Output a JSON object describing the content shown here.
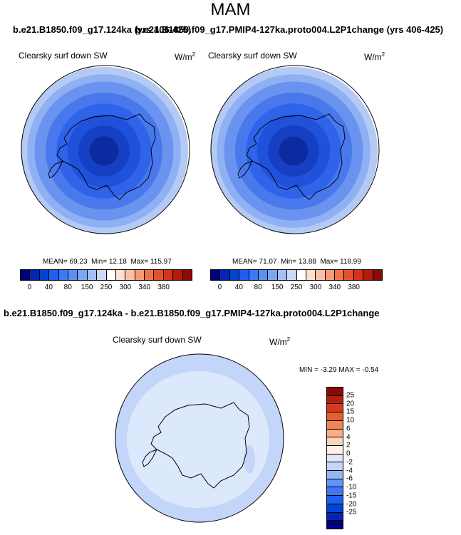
{
  "figure": {
    "season": "MAM",
    "top_left_title": "b.e21.B1850.f09_g17.124ka (yrs 406-425)",
    "top_right_title": "b.e21.B1850.f09_g17.PMIP4-127ka.proto004.L2P1change (yrs 406-425)",
    "diff_title": "b.e21.B1850.f09_g17.124ka - b.e21.B1850.f09_g17.PMIP4-127ka.proto004.L2P1change"
  },
  "colors": {
    "ramp11": [
      "#000080",
      "#0026b3",
      "#0044d0",
      "#1f5ff0",
      "#3b78f5",
      "#5a8ff5",
      "#7ba6f5",
      "#a3c0f5",
      "#c9daf8",
      "#ffffff",
      "#fde0cf",
      "#fbc0a3",
      "#f59a73",
      "#ee7448",
      "#e5502a",
      "#d5321b",
      "#b51a10",
      "#8b0a05"
    ],
    "diff_ramp": [
      "#000080",
      "#0026b3",
      "#0044d0",
      "#1f5ff0",
      "#3b78f5",
      "#6593f5",
      "#93b4f7",
      "#c3d5f8",
      "#dce8fb",
      "#fff0e6",
      "#fdd4bb",
      "#f8ad88",
      "#f08459",
      "#e65e35",
      "#d63a1e",
      "#b81e10",
      "#8b0a05"
    ],
    "land_outline": "#000000"
  },
  "chart_data": [
    {
      "type": "heatmap",
      "projection": "south-polar-stereographic",
      "title": "b.e21.B1850.f09_g17.124ka (yrs 406-425)",
      "variable": "Clearsky surf down SW",
      "units": "W/m",
      "units_exp": "2",
      "stats": {
        "mean_label": "MEAN=",
        "mean": "69.23",
        "min_label": "Min=",
        "min": "12.18",
        "max_label": "Max=",
        "max": "115.97"
      },
      "colorbar_ticks": [
        "0",
        "40",
        "80",
        "150",
        "250",
        "300",
        "340",
        "380"
      ],
      "rings": [
        {
          "level": 115,
          "color": "#b3caf5"
        },
        {
          "level": 105,
          "color": "#8fb0f2"
        },
        {
          "level": 95,
          "color": "#6a93ef"
        },
        {
          "level": 80,
          "color": "#4878ec"
        },
        {
          "level": 65,
          "color": "#2e63ea"
        },
        {
          "level": 50,
          "color": "#1f51db"
        },
        {
          "level": 35,
          "color": "#1640c4"
        },
        {
          "level": 20,
          "color": "#0e2aa0"
        }
      ]
    },
    {
      "type": "heatmap",
      "projection": "south-polar-stereographic",
      "title": "b.e21.B1850.f09_g17.PMIP4-127ka.proto004.L2P1change (yrs 406-425)",
      "variable": "Clearsky surf down SW",
      "units": "W/m",
      "units_exp": "2",
      "stats": {
        "mean_label": "MEAN=",
        "mean": "71.07",
        "min_label": "Min=",
        "min": "13.88",
        "max_label": "Max=",
        "max": "118.99"
      },
      "colorbar_ticks": [
        "0",
        "40",
        "80",
        "150",
        "250",
        "300",
        "340",
        "380"
      ],
      "rings": [
        {
          "level": 115,
          "color": "#b3caf5"
        },
        {
          "level": 105,
          "color": "#8fb0f2"
        },
        {
          "level": 95,
          "color": "#6a93ef"
        },
        {
          "level": 80,
          "color": "#4878ec"
        },
        {
          "level": 65,
          "color": "#2e63ea"
        },
        {
          "level": 50,
          "color": "#1f51db"
        },
        {
          "level": 35,
          "color": "#1640c4"
        },
        {
          "level": 20,
          "color": "#0e2aa0"
        }
      ]
    },
    {
      "type": "heatmap",
      "projection": "south-polar-stereographic",
      "title": "b.e21.B1850.f09_g17.124ka - b.e21.B1850.f09_g17.PMIP4-127ka.proto004.L2P1change",
      "variable": "Clearsky surf down SW",
      "units": "W/m",
      "units_exp": "2",
      "stats": {
        "min_label": "MIN =",
        "min": "-3.29",
        "max_label": "MAX =",
        "max": "-0.54"
      },
      "colorbar_ticks": [
        "25",
        "20",
        "15",
        "10",
        "6",
        "4",
        "2",
        "0",
        "-2",
        "-4",
        "-6",
        "-10",
        "-15",
        "-20",
        "-25"
      ],
      "base_color": "#dce8fb",
      "outer_color": "#c3d5f8"
    }
  ]
}
